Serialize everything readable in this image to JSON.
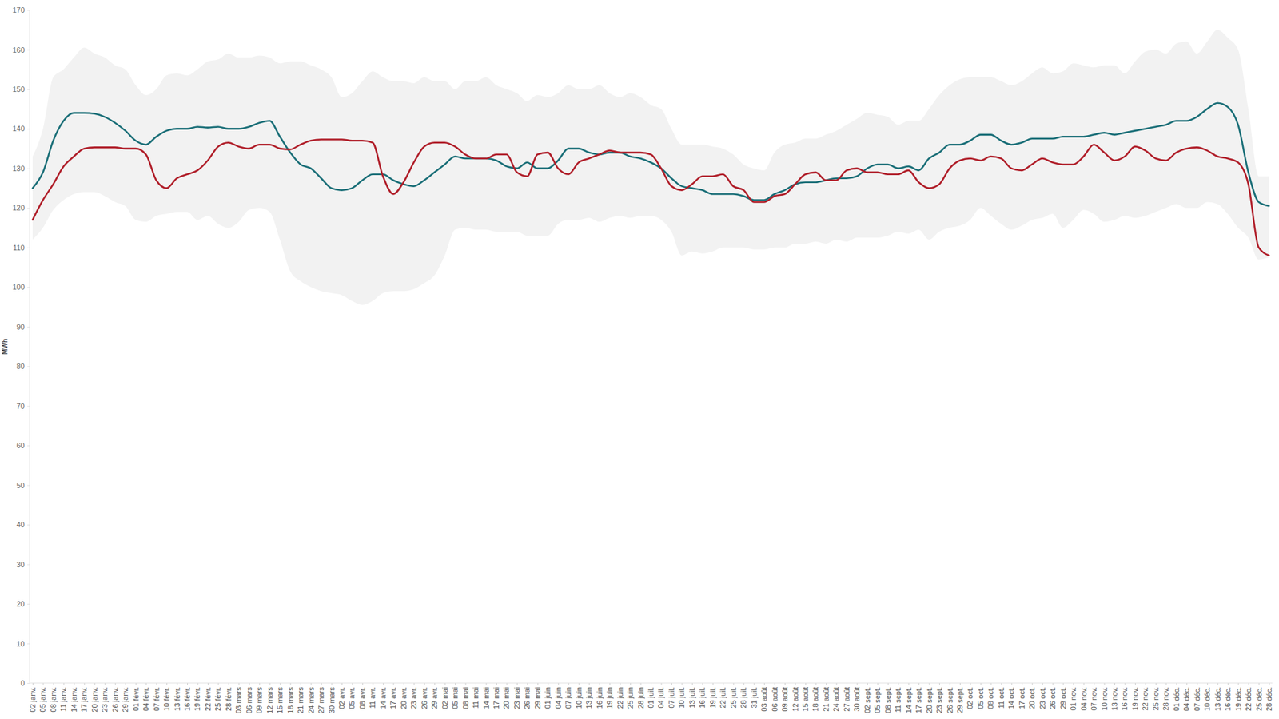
{
  "chart_data": {
    "type": "line",
    "y_label": "MWh",
    "categories": [
      "02 janv.",
      "05 janv.",
      "08 janv.",
      "11 janv.",
      "14 janv.",
      "17 janv.",
      "20 janv.",
      "23 janv.",
      "26 janv.",
      "29 janv.",
      "01 févr.",
      "04 févr.",
      "07 févr.",
      "10 févr.",
      "13 févr.",
      "16 févr.",
      "19 févr.",
      "22 févr.",
      "25 févr.",
      "28 févr.",
      "03 mars",
      "06 mars",
      "09 mars",
      "12 mars",
      "15 mars",
      "18 mars",
      "21 mars",
      "24 mars",
      "27 mars",
      "30 mars",
      "02 avr.",
      "05 avr.",
      "08 avr.",
      "11 avr.",
      "14 avr.",
      "17 avr.",
      "20 avr.",
      "23 avr.",
      "26 avr.",
      "29 avr.",
      "02 mai",
      "05 mai",
      "08 mai",
      "11 mai",
      "14 mai",
      "17 mai",
      "20 mai",
      "23 mai",
      "26 mai",
      "29 mai",
      "01 juin",
      "04 juin",
      "07 juin",
      "10 juin",
      "13 juin",
      "16 juin",
      "19 juin",
      "22 juin",
      "25 juin",
      "28 juin",
      "01 juil.",
      "04 juil.",
      "07 juil.",
      "10 juil.",
      "13 juil.",
      "16 juil.",
      "19 juil.",
      "22 juil.",
      "25 juil.",
      "28 juil.",
      "31 juil.",
      "03 août",
      "06 août",
      "09 août",
      "12 août",
      "15 août",
      "18 août",
      "21 août",
      "24 août",
      "27 août",
      "30 août",
      "02 sept.",
      "05 sept.",
      "08 sept.",
      "11 sept.",
      "14 sept.",
      "17 sept.",
      "20 sept.",
      "23 sept.",
      "26 sept.",
      "29 sept.",
      "02 oct.",
      "05 oct.",
      "08 oct.",
      "11 oct.",
      "14 oct.",
      "17 oct.",
      "20 oct.",
      "23 oct.",
      "26 oct.",
      "29 oct.",
      "01 nov.",
      "04 nov.",
      "07 nov.",
      "10 nov.",
      "13 nov.",
      "16 nov.",
      "19 nov.",
      "22 nov.",
      "25 nov.",
      "28 nov.",
      "01 déc.",
      "04 déc.",
      "07 déc.",
      "10 déc.",
      "13 déc.",
      "16 déc.",
      "19 déc.",
      "22 déc.",
      "25 déc.",
      "28 déc."
    ],
    "series": [
      {
        "type": "area",
        "color": "#f2f2f2",
        "low": [
          112,
          115,
          119.5,
          122,
          123.5,
          124,
          124,
          123,
          121.5,
          120.5,
          117,
          116.5,
          118,
          118.5,
          119,
          119,
          117,
          118,
          116,
          115,
          116.5,
          119.5,
          120,
          119,
          112,
          104,
          101.5,
          100,
          99,
          98.5,
          98,
          96.5,
          95.5,
          96.5,
          98.5,
          99,
          99,
          99.5,
          101,
          103,
          108,
          114.5,
          115,
          114.5,
          114.5,
          114,
          114,
          114,
          113,
          113,
          113,
          116,
          117,
          117,
          117.5,
          116.5,
          117.5,
          118,
          117.5,
          118,
          118,
          117,
          114,
          108,
          109,
          108.5,
          109,
          110,
          110,
          110,
          109.5,
          109.5,
          110,
          110,
          111,
          111,
          111.5,
          111,
          112,
          111.5,
          112.5,
          112.5,
          112.5,
          113,
          114,
          113.5,
          114.5,
          112,
          114,
          115,
          115.5,
          117,
          120,
          118,
          116,
          114.5,
          115.5,
          117,
          117.5,
          118.5,
          115,
          117,
          119.5,
          118.5,
          116.5,
          117,
          118,
          117.5,
          118,
          119,
          120,
          121,
          120,
          120,
          121.5,
          121,
          118.5,
          115,
          112.5,
          107,
          107.5
        ],
        "high": [
          133,
          140,
          153,
          155,
          158,
          160.5,
          159,
          158,
          156,
          155,
          151,
          148.5,
          150,
          153.5,
          154,
          153.5,
          155,
          157,
          157.5,
          159,
          158,
          158,
          158.5,
          158,
          156.5,
          157,
          157,
          156,
          155,
          153,
          148,
          149,
          152,
          154.5,
          153,
          152,
          152,
          151.5,
          153,
          152,
          152,
          150,
          152,
          152,
          153,
          151,
          150,
          149,
          147,
          148.5,
          148,
          149,
          151,
          150,
          150,
          151,
          149,
          148,
          149,
          148,
          146,
          145,
          140,
          136,
          136,
          136,
          135.5,
          135,
          133.5,
          131,
          130,
          129.5,
          134,
          136,
          136.5,
          137.5,
          137.5,
          138.5,
          139.5,
          141,
          142.5,
          144,
          143.5,
          143,
          141,
          142,
          142,
          145,
          148.5,
          151,
          152.5,
          153,
          153,
          153,
          152,
          151,
          152,
          154,
          155.5,
          154,
          154.5,
          156.5,
          156,
          155.5,
          156,
          156,
          154,
          157,
          159.5,
          160,
          159,
          161.5,
          162,
          159,
          162,
          165,
          163,
          160,
          145,
          128,
          128
        ]
      },
      {
        "type": "line",
        "color": "#1b6f78",
        "values": [
          125,
          129,
          137,
          142,
          144,
          144,
          143.8,
          143,
          141.5,
          139.5,
          137,
          136,
          138,
          139.5,
          140,
          140,
          140.5,
          140.3,
          140.5,
          140,
          140,
          140.5,
          141.5,
          142,
          138,
          134,
          131,
          130,
          127.5,
          125,
          124.5,
          125,
          127,
          128.5,
          128.5,
          127,
          126,
          125.5,
          127,
          129,
          131,
          133,
          132.5,
          132.5,
          132.5,
          132,
          130.5,
          130,
          131.5,
          130,
          130,
          132,
          135,
          135,
          134,
          133.5,
          134,
          134,
          133,
          132.5,
          131.5,
          130,
          127.5,
          125.5,
          125,
          124.5,
          123.5,
          123.5,
          123.5,
          123,
          122,
          122,
          123.5,
          124.5,
          126,
          126.5,
          126.5,
          127,
          127.5,
          127.5,
          128,
          130,
          131,
          131,
          130,
          130.5,
          129.5,
          132.5,
          134,
          136,
          136,
          137,
          138.5,
          138.5,
          137,
          136,
          136.5,
          137.5,
          137.5,
          137.5,
          138,
          138,
          138,
          138.5,
          139,
          138.5,
          139,
          139.5,
          140,
          140.5,
          141,
          142,
          142,
          143,
          145,
          146.5,
          145.5,
          141,
          129,
          121.5,
          120.5
        ]
      },
      {
        "type": "line",
        "color": "#b01f2a",
        "values": [
          117,
          122,
          126,
          130.5,
          133,
          135,
          135.3,
          135.3,
          135.3,
          135,
          135,
          133.5,
          127,
          125,
          127.5,
          128.5,
          129.5,
          132,
          135.5,
          136.5,
          135.5,
          135,
          136,
          136,
          135,
          134.8,
          136,
          137,
          137.3,
          137.3,
          137.3,
          137,
          137,
          136.5,
          128,
          123.5,
          126.5,
          131.5,
          135.5,
          136.5,
          136.5,
          135.5,
          133.5,
          132.5,
          132.5,
          133.5,
          133.5,
          129,
          128,
          133.5,
          134,
          130,
          128.5,
          131.5,
          132.5,
          133.5,
          134.5,
          134,
          134,
          134,
          133.5,
          130,
          125.5,
          124.5,
          126,
          128,
          128,
          128.5,
          125.5,
          124.5,
          121.5,
          121.5,
          123,
          123.5,
          126,
          128.5,
          129,
          127,
          127,
          129.5,
          130,
          129,
          129,
          128.5,
          128.5,
          129.5,
          126.5,
          125,
          126,
          130,
          132,
          132.5,
          132,
          133,
          132.5,
          130,
          129.5,
          131,
          132.5,
          131.5,
          131,
          131,
          133,
          136,
          134,
          132,
          133,
          135.5,
          134.5,
          132.5,
          132,
          134,
          135,
          135.3,
          134.5,
          133,
          132.5,
          131.5,
          126,
          110,
          108
        ]
      }
    ],
    "ylim": [
      0,
      170
    ],
    "yticks": [
      0,
      10,
      20,
      30,
      40,
      50,
      60,
      70,
      80,
      90,
      100,
      110,
      120,
      130,
      140,
      150,
      160,
      170
    ],
    "grid": false
  }
}
